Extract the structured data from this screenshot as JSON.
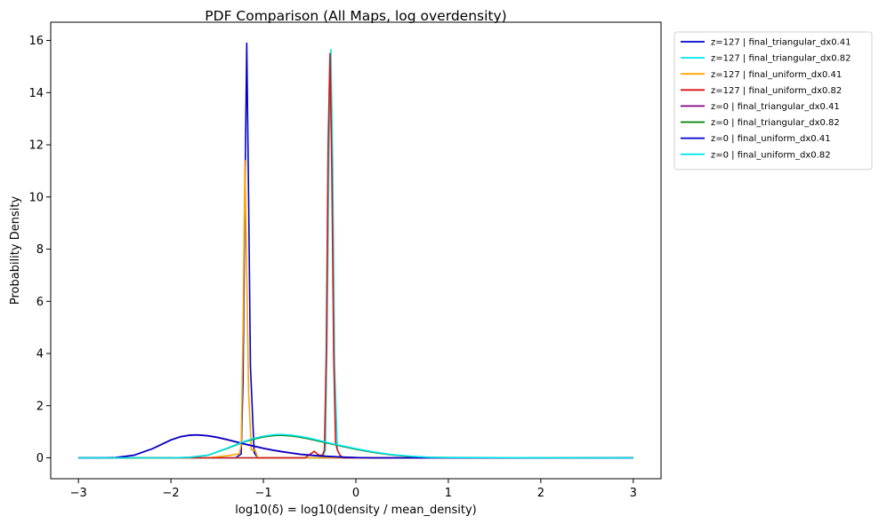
{
  "chart_data": {
    "type": "line",
    "title": "PDF Comparison (All Maps, log overdensity)",
    "xlabel": "log10(δ) = log10(density / mean_density)",
    "ylabel": "Probability Density",
    "xlim": [
      -3.3,
      3.3
    ],
    "ylim": [
      -0.8,
      16.7
    ],
    "xticks": [
      -3,
      -2,
      -1,
      0,
      1,
      2,
      3
    ],
    "xtick_labels": [
      "−3",
      "−2",
      "−1",
      "0",
      "1",
      "2",
      "3"
    ],
    "yticks": [
      0,
      2,
      4,
      6,
      8,
      10,
      12,
      14,
      16
    ],
    "ytick_labels": [
      "0",
      "2",
      "4",
      "6",
      "8",
      "10",
      "12",
      "14",
      "16"
    ],
    "grid": false,
    "legend_position": "outside-upper-right",
    "series": [
      {
        "name": "z=127 | final_triangular_dx0.41",
        "color": "#0000cc",
        "x": [
          -3.0,
          -1.3,
          -1.24,
          -1.22,
          -1.2,
          -1.18,
          -1.16,
          -1.14,
          -1.1,
          -1.06,
          3.0
        ],
        "y": [
          0,
          0,
          0.15,
          3.0,
          10.0,
          15.9,
          10.0,
          3.5,
          0.2,
          0,
          0
        ]
      },
      {
        "name": "z=127 | final_triangular_dx0.82",
        "color": "#00e5ee",
        "x": [
          -3.0,
          -0.36,
          -0.33,
          -0.31,
          -0.29,
          -0.27,
          -0.25,
          -0.23,
          -0.2,
          -0.16,
          3.0
        ],
        "y": [
          0,
          0,
          0.3,
          5.0,
          12.0,
          15.65,
          11.0,
          3.5,
          0.3,
          0,
          0
        ]
      },
      {
        "name": "z=127 | final_uniform_dx0.41",
        "color": "#ffa500",
        "x": [
          -3.0,
          -1.6,
          -1.4,
          -1.26,
          -1.24,
          -1.22,
          -1.2,
          -1.18,
          -1.16,
          -1.13,
          -1.09,
          -1.06,
          -1.0,
          3.0
        ],
        "y": [
          0,
          0,
          0.08,
          0.15,
          0.5,
          5.0,
          11.4,
          7.0,
          2.5,
          0.3,
          0.3,
          0,
          0,
          0
        ]
      },
      {
        "name": "z=127 | final_uniform_dx0.82",
        "color": "#dd1111",
        "x": [
          -3.0,
          -0.55,
          -0.45,
          -0.4,
          -0.36,
          -0.34,
          -0.32,
          -0.3,
          -0.28,
          -0.26,
          -0.24,
          -0.22,
          -0.2,
          -0.17,
          -0.14,
          3.0
        ],
        "y": [
          0,
          0,
          0.25,
          0.1,
          0.1,
          0.3,
          4.0,
          12.0,
          15.5,
          11.0,
          4.0,
          0.6,
          0.3,
          0.1,
          0,
          0
        ]
      },
      {
        "name": "z=0 | final_triangular_dx0.41",
        "color": "#800080",
        "x": [
          -3.0,
          -2.8,
          -2.6,
          -2.4,
          -2.2,
          -2.0,
          -1.9,
          -1.8,
          -1.75,
          -1.7,
          -1.6,
          -1.5,
          -1.4,
          -1.3,
          -1.2,
          -1.1,
          -1.0,
          -0.9,
          -0.8,
          -0.6,
          -0.4,
          -0.2,
          0.0,
          0.2,
          3.0
        ],
        "y": [
          0,
          0,
          0.01,
          0.1,
          0.35,
          0.68,
          0.8,
          0.86,
          0.87,
          0.87,
          0.84,
          0.78,
          0.7,
          0.61,
          0.52,
          0.44,
          0.36,
          0.29,
          0.23,
          0.13,
          0.07,
          0.03,
          0.01,
          0,
          0
        ]
      },
      {
        "name": "z=0 | final_triangular_dx0.82",
        "color": "#008000",
        "x": [
          -3.0,
          -2.0,
          -1.8,
          -1.6,
          -1.4,
          -1.2,
          -1.1,
          -1.0,
          -0.9,
          -0.85,
          -0.8,
          -0.7,
          -0.6,
          -0.5,
          -0.4,
          -0.3,
          -0.2,
          0.0,
          0.2,
          0.4,
          0.6,
          0.8,
          1.0,
          3.0
        ],
        "y": [
          0,
          0,
          0.02,
          0.1,
          0.35,
          0.62,
          0.72,
          0.8,
          0.85,
          0.86,
          0.86,
          0.84,
          0.79,
          0.72,
          0.64,
          0.56,
          0.48,
          0.33,
          0.2,
          0.11,
          0.05,
          0.02,
          0.01,
          0
        ]
      },
      {
        "name": "z=0 | final_uniform_dx0.41",
        "color": "#0000cc",
        "x": [
          -3.0,
          -2.8,
          -2.6,
          -2.4,
          -2.2,
          -2.0,
          -1.9,
          -1.8,
          -1.75,
          -1.7,
          -1.6,
          -1.5,
          -1.4,
          -1.3,
          -1.2,
          -1.1,
          -1.0,
          -0.9,
          -0.8,
          -0.6,
          -0.4,
          -0.2,
          0.0,
          0.2,
          3.0
        ],
        "y": [
          0,
          0,
          0.01,
          0.1,
          0.35,
          0.69,
          0.81,
          0.87,
          0.88,
          0.88,
          0.85,
          0.79,
          0.71,
          0.62,
          0.53,
          0.45,
          0.37,
          0.3,
          0.24,
          0.14,
          0.08,
          0.04,
          0.01,
          0,
          0
        ]
      },
      {
        "name": "z=0 | final_uniform_dx0.82",
        "color": "#00e5ee",
        "x": [
          -3.0,
          -2.0,
          -1.8,
          -1.6,
          -1.4,
          -1.2,
          -1.1,
          -1.0,
          -0.9,
          -0.85,
          -0.8,
          -0.7,
          -0.6,
          -0.5,
          -0.4,
          -0.3,
          -0.2,
          0.0,
          0.2,
          0.4,
          0.6,
          0.8,
          1.0,
          3.0
        ],
        "y": [
          0,
          0,
          0.02,
          0.1,
          0.36,
          0.64,
          0.75,
          0.83,
          0.88,
          0.89,
          0.89,
          0.87,
          0.82,
          0.75,
          0.67,
          0.58,
          0.5,
          0.35,
          0.22,
          0.12,
          0.06,
          0.02,
          0.01,
          0
        ]
      }
    ]
  }
}
